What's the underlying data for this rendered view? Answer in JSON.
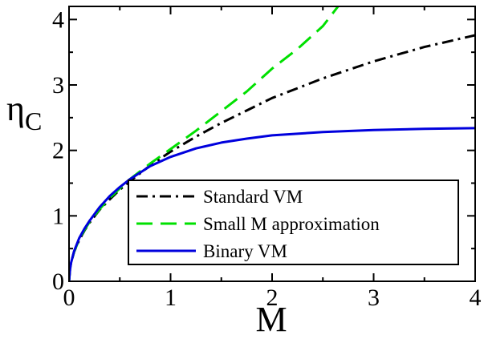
{
  "chart_data": {
    "type": "line",
    "title": "",
    "xlabel": "M",
    "ylabel": "η",
    "ylabel_subscript": "C",
    "xlim": [
      0,
      4
    ],
    "ylim": [
      0,
      4.2
    ],
    "xticks": [
      0,
      1,
      2,
      3,
      4
    ],
    "yticks": [
      0,
      1,
      2,
      3,
      4
    ],
    "grid": false,
    "legend_position": "lower-right",
    "series": [
      {
        "name": "Standard VM",
        "color": "#000000",
        "dash": "dash-dot",
        "x": [
          0,
          0.01,
          0.02,
          0.05,
          0.1,
          0.15,
          0.2,
          0.3,
          0.4,
          0.5,
          0.6,
          0.8,
          1.0,
          1.25,
          1.5,
          1.75,
          2.0,
          2.25,
          2.5,
          2.75,
          3.0,
          3.25,
          3.5,
          3.75,
          4.0
        ],
        "values": [
          0,
          0.2,
          0.28,
          0.45,
          0.63,
          0.77,
          0.89,
          1.09,
          1.25,
          1.4,
          1.53,
          1.77,
          1.98,
          2.21,
          2.42,
          2.61,
          2.8,
          2.95,
          3.1,
          3.23,
          3.36,
          3.47,
          3.58,
          3.67,
          3.76
        ]
      },
      {
        "name": "Small M approximation",
        "color": "#00e000",
        "dash": "long-dash",
        "x": [
          0,
          0.01,
          0.02,
          0.05,
          0.1,
          0.15,
          0.2,
          0.3,
          0.4,
          0.5,
          0.6,
          0.8,
          1.0,
          1.25,
          1.5,
          1.75,
          2.0,
          2.25,
          2.5,
          2.65
        ],
        "values": [
          0,
          0.2,
          0.28,
          0.45,
          0.64,
          0.78,
          0.9,
          1.1,
          1.27,
          1.42,
          1.56,
          1.8,
          2.02,
          2.3,
          2.6,
          2.9,
          3.25,
          3.55,
          3.9,
          4.2
        ]
      },
      {
        "name": "Binary VM",
        "color": "#0000dd",
        "dash": "solid",
        "x": [
          0,
          0.01,
          0.02,
          0.05,
          0.1,
          0.15,
          0.2,
          0.3,
          0.4,
          0.5,
          0.6,
          0.8,
          1.0,
          1.25,
          1.5,
          1.75,
          2.0,
          2.5,
          3.0,
          3.5,
          4.0
        ],
        "values": [
          0,
          0.18,
          0.28,
          0.46,
          0.66,
          0.8,
          0.92,
          1.13,
          1.3,
          1.44,
          1.56,
          1.76,
          1.9,
          2.03,
          2.12,
          2.18,
          2.23,
          2.28,
          2.31,
          2.33,
          2.34
        ]
      }
    ]
  }
}
